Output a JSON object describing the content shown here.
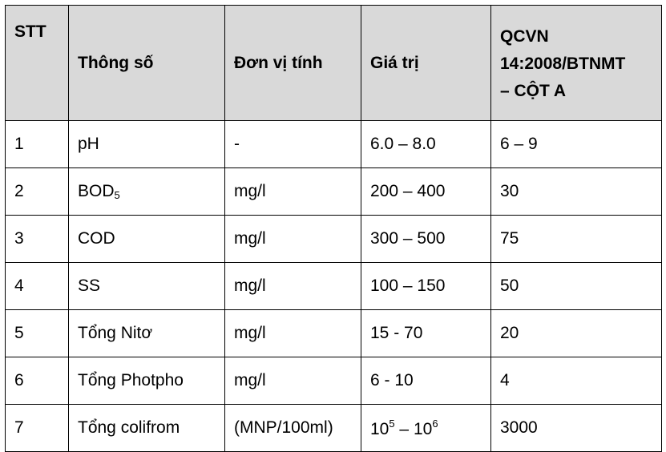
{
  "header": {
    "stt": "STT",
    "param": "Thông số",
    "unit": "Đơn vị tính",
    "value": "Giá trị",
    "standard_line1": "QCVN",
    "standard_line2": "14:2008/BTNMT",
    "standard_line3": "– CỘT A"
  },
  "rows": [
    {
      "stt": "1",
      "param": "pH",
      "unit": "-",
      "value": "6.0 – 8.0",
      "standard": "6 – 9"
    },
    {
      "stt": "2",
      "param": "BOD",
      "param_sub": "5",
      "unit": "mg/l",
      "value": "200 – 400",
      "standard": "30"
    },
    {
      "stt": "3",
      "param": "COD",
      "unit": "mg/l",
      "value": "300 – 500",
      "standard": "75"
    },
    {
      "stt": "4",
      "param": "SS",
      "unit": "mg/l",
      "value": "100 – 150",
      "standard": "50"
    },
    {
      "stt": "5",
      "param": "Tổng Nitơ",
      "unit": "mg/l",
      "value": "15 - 70",
      "standard": "20"
    },
    {
      "stt": "6",
      "param": "Tổng Photpho",
      "unit": "mg/l",
      "value": "6 - 10",
      "standard": "4"
    },
    {
      "stt": "7",
      "param": "Tổng colifrom",
      "unit": "(MNP/100ml)",
      "value_base1": "10",
      "value_exp1": "5",
      "value_sep": " – ",
      "value_base2": "10",
      "value_exp2": "6",
      "standard": "3000"
    }
  ]
}
